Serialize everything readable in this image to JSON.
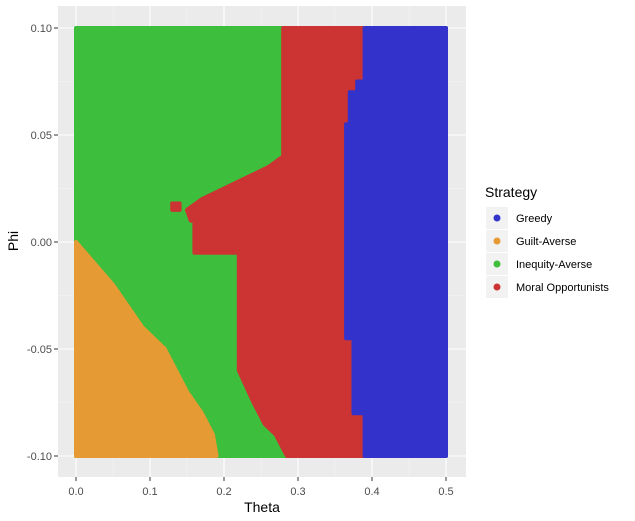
{
  "chart_data": {
    "type": "heatmap",
    "xlabel": "Theta",
    "ylabel": "Phi",
    "xlim": [
      0,
      0.5
    ],
    "ylim": [
      -0.1,
      0.1
    ],
    "x_ticks": [
      "0.0",
      "0.1",
      "0.2",
      "0.3",
      "0.4",
      "0.5"
    ],
    "y_ticks": [
      "0.10",
      "0.05",
      "0.00",
      "-0.05",
      "-0.10"
    ],
    "grid": true,
    "legend": {
      "title": "Strategy",
      "position": "right",
      "items": [
        {
          "label": "Greedy",
          "color": "#3333CC"
        },
        {
          "label": "Guilt-Averse",
          "color": "#E69A33"
        },
        {
          "label": "Inequity-Averse",
          "color": "#3DBE3D"
        },
        {
          "label": "Moral Opportunists",
          "color": "#CC3333"
        }
      ]
    },
    "regions": [
      {
        "series": "Guilt-Averse",
        "polygon": [
          [
            0,
            0
          ],
          [
            0,
            -0.1
          ],
          [
            0.19,
            -0.1
          ],
          [
            0.185,
            -0.09
          ],
          [
            0.17,
            -0.08
          ],
          [
            0.15,
            -0.07
          ],
          [
            0.12,
            -0.05
          ],
          [
            0.09,
            -0.04
          ],
          [
            0.05,
            -0.02
          ],
          [
            0.025,
            -0.01
          ]
        ]
      },
      {
        "series": "Moral Opportunists",
        "polygon": [
          [
            0.28,
            0.1
          ],
          [
            0.39,
            0.1
          ],
          [
            0.39,
            0.075
          ],
          [
            0.38,
            0.075
          ],
          [
            0.38,
            0.07
          ],
          [
            0.37,
            0.07
          ],
          [
            0.37,
            0.055
          ],
          [
            0.365,
            0.055
          ],
          [
            0.365,
            -0.045
          ],
          [
            0.375,
            -0.045
          ],
          [
            0.375,
            -0.08
          ],
          [
            0.39,
            -0.08
          ],
          [
            0.39,
            -0.1
          ],
          [
            0.285,
            -0.1
          ],
          [
            0.27,
            -0.09
          ],
          [
            0.255,
            -0.085
          ],
          [
            0.24,
            -0.075
          ],
          [
            0.22,
            -0.06
          ],
          [
            0.22,
            -0.005
          ],
          [
            0.16,
            -0.005
          ],
          [
            0.16,
            0.01
          ],
          [
            0.155,
            0.01
          ],
          [
            0.15,
            0.015
          ],
          [
            0.17,
            0.02
          ],
          [
            0.2,
            0.025
          ],
          [
            0.23,
            0.03
          ],
          [
            0.26,
            0.035
          ],
          [
            0.28,
            0.04
          ]
        ]
      },
      {
        "series": "Greedy",
        "polygon": [
          [
            0.39,
            0.1
          ],
          [
            0.5,
            0.1
          ],
          [
            0.5,
            -0.1
          ],
          [
            0.39,
            -0.1
          ],
          [
            0.39,
            -0.08
          ],
          [
            0.375,
            -0.08
          ],
          [
            0.375,
            -0.045
          ],
          [
            0.365,
            -0.045
          ],
          [
            0.365,
            0.055
          ],
          [
            0.37,
            0.055
          ],
          [
            0.37,
            0.07
          ],
          [
            0.38,
            0.07
          ],
          [
            0.38,
            0.075
          ],
          [
            0.39,
            0.075
          ]
        ]
      },
      {
        "series": "Moral Opportunists",
        "polygon": [
          [
            0.13,
            0.015
          ],
          [
            0.14,
            0.015
          ],
          [
            0.14,
            0.018
          ],
          [
            0.13,
            0.018
          ]
        ]
      }
    ]
  }
}
